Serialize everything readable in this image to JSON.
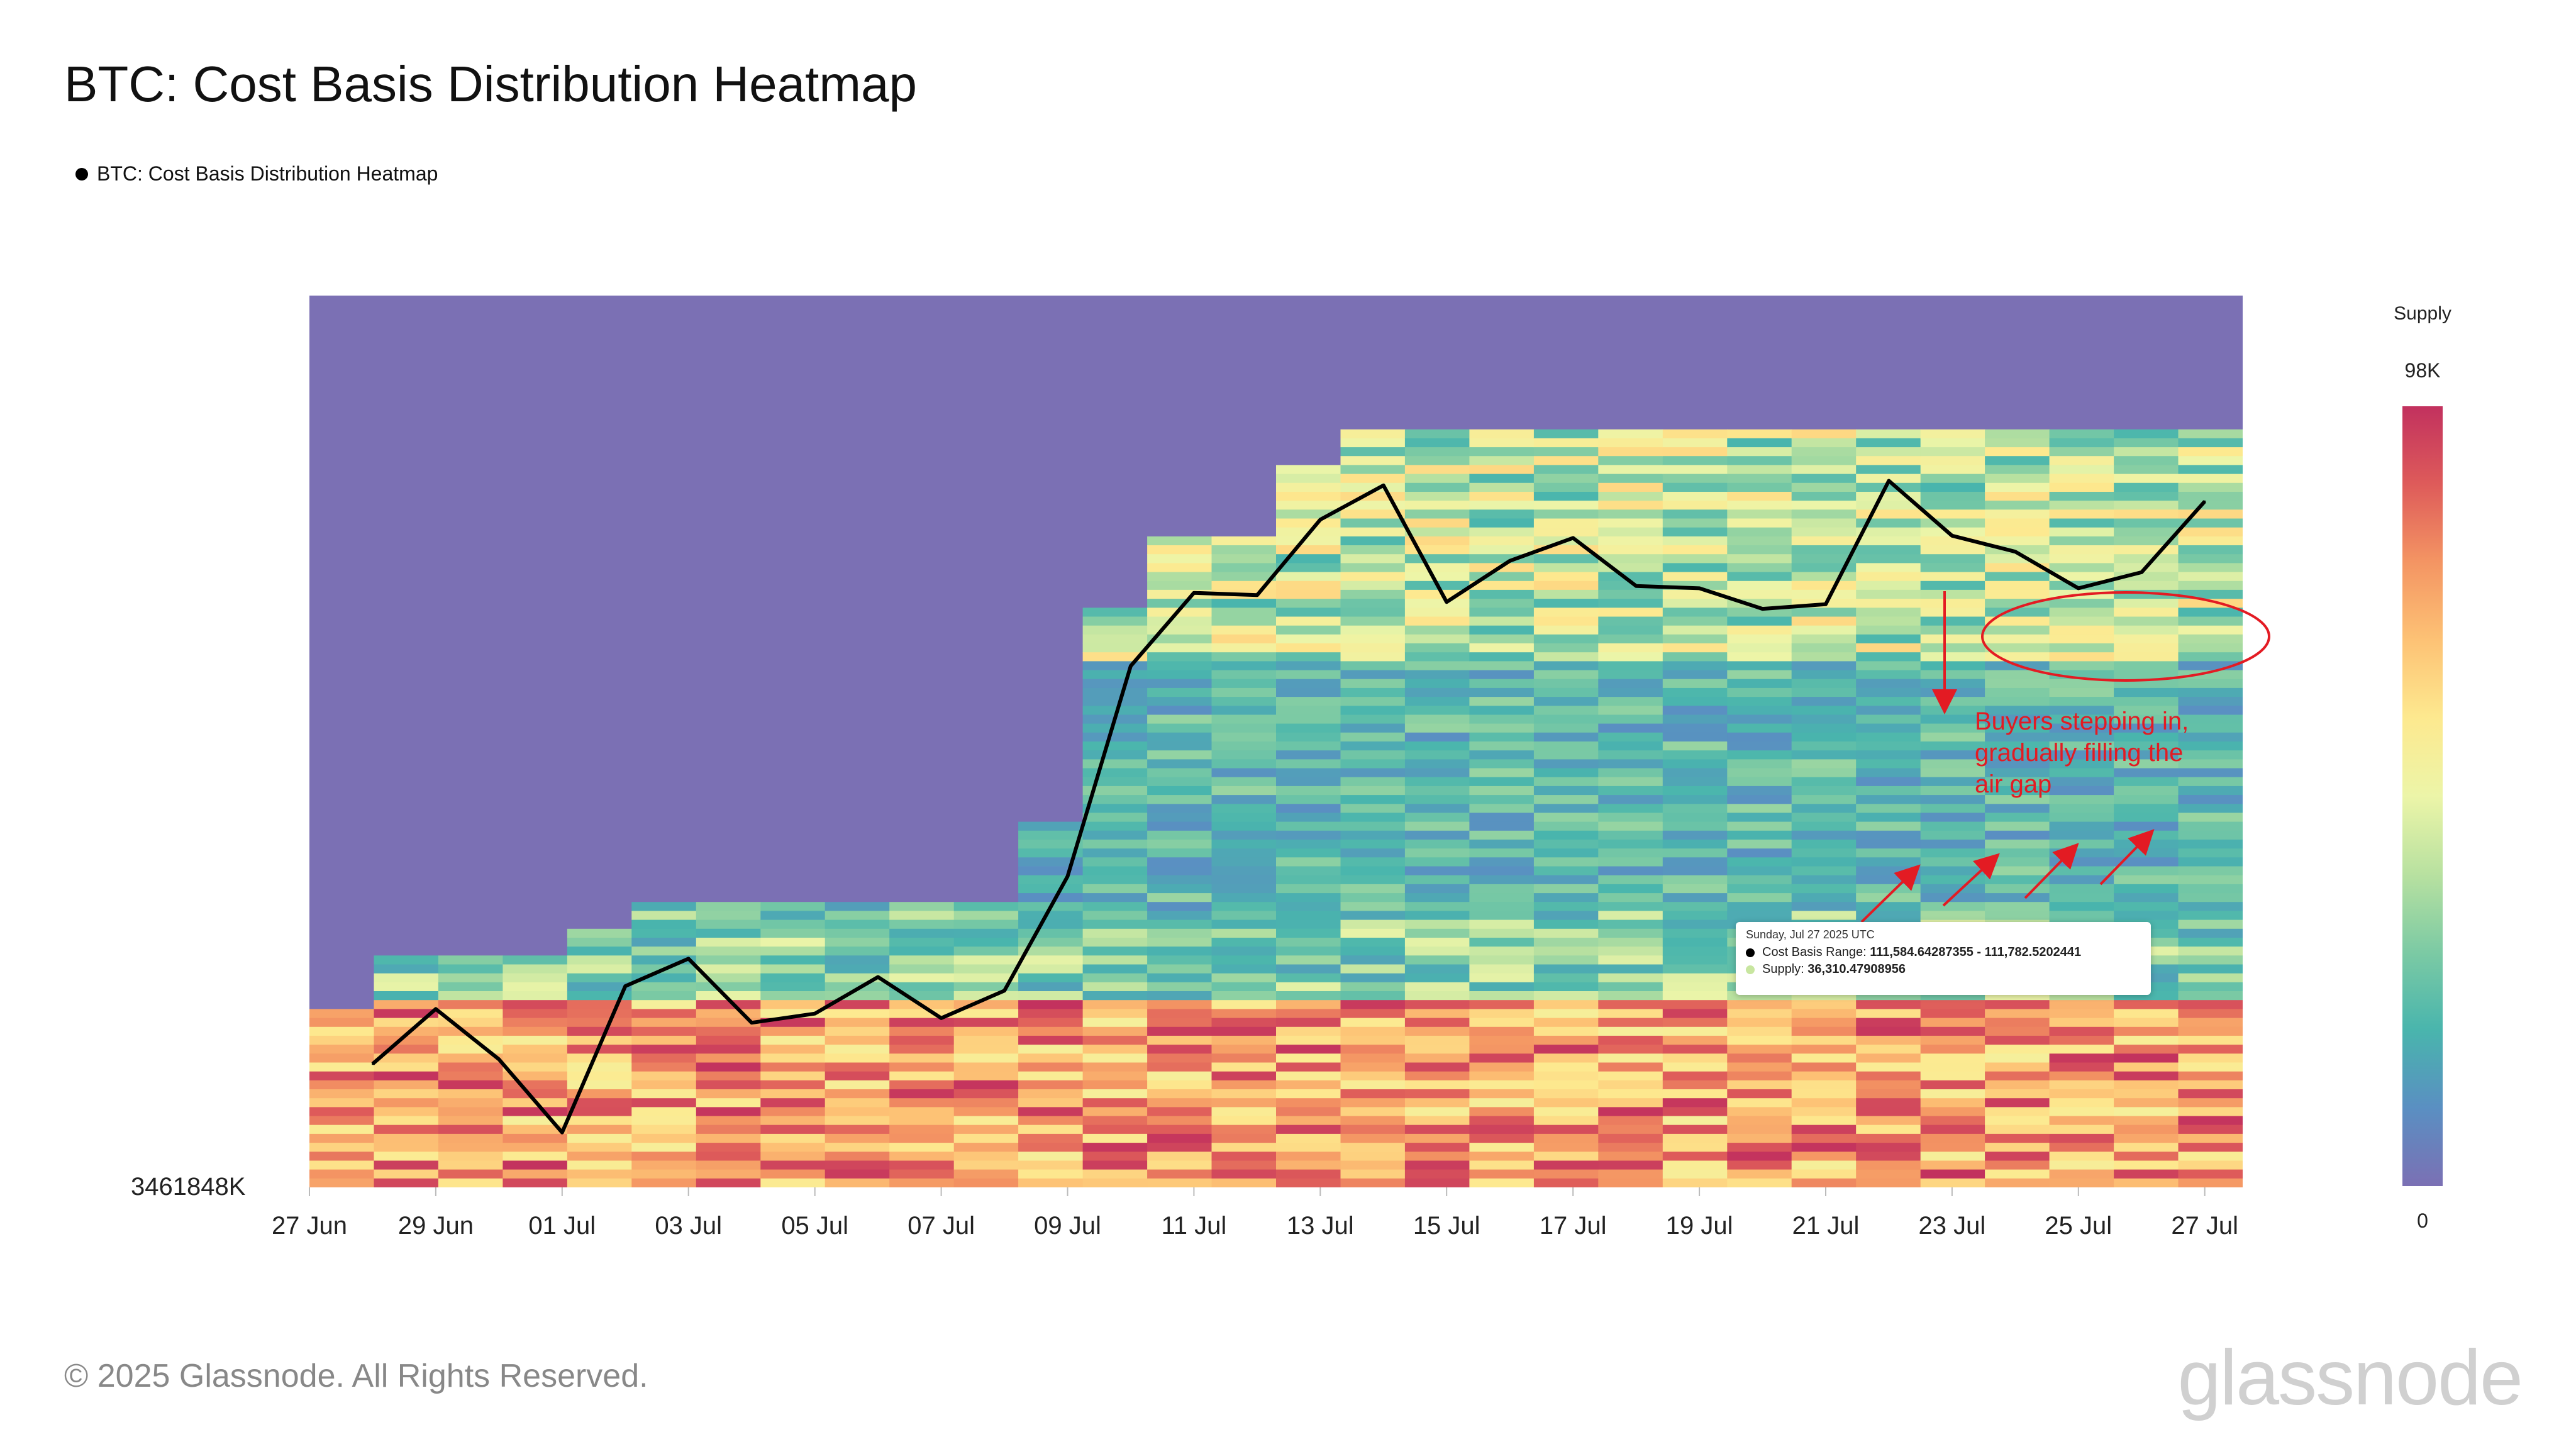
{
  "title": "BTC: Cost Basis Distribution Heatmap",
  "legend_label": "BTC: Cost Basis Distribution Heatmap",
  "footer": "© 2025 Glassnode. All Rights Reserved.",
  "brand": "glassnode",
  "watermark": "glassnode",
  "colorbar": {
    "title": "Supply",
    "max_label": "98K",
    "min_label": "0"
  },
  "y_axis_label": "3461848K",
  "tooltip": {
    "date": "Sunday, Jul 27 2025 UTC",
    "range_label": "Cost Basis Range:",
    "range_value": "111,584.64287355 - 111,782.5202441",
    "supply_label": "Supply:",
    "supply_value": "36,310.47908956"
  },
  "annotation": {
    "lines": [
      "Buyers stepping in,",
      "gradually filling the",
      "air gap"
    ],
    "color": "#e31b23"
  },
  "chart_data": {
    "type": "heatmap",
    "title": "BTC: Cost Basis Distribution Heatmap",
    "x_ticks": [
      "27 Jun",
      "29 Jun",
      "01 Jul",
      "03 Jul",
      "05 Jul",
      "07 Jul",
      "09 Jul",
      "11 Jul",
      "13 Jul",
      "15 Jul",
      "17 Jul",
      "19 Jul",
      "21 Jul",
      "23 Jul",
      "25 Jul",
      "27 Jul"
    ],
    "colorscale": [
      "#7b70b4",
      "#5a8fc2",
      "#49b5ad",
      "#7ccaa4",
      "#b8e1a0",
      "#ecf5a8",
      "#fde98f",
      "#fdc275",
      "#f49563",
      "#de5b5a",
      "#c2315e"
    ],
    "supply_range": [
      0,
      98000
    ],
    "price_series": {
      "name": "BTC: Cost Basis Distribution Heatmap",
      "color": "#000000",
      "dates": [
        "28 Jun",
        "29 Jun",
        "30 Jun",
        "01 Jul",
        "02 Jul",
        "03 Jul",
        "04 Jul",
        "05 Jul",
        "06 Jul",
        "07 Jul",
        "08 Jul",
        "09 Jul",
        "10 Jul",
        "11 Jul",
        "12 Jul",
        "13 Jul",
        "14 Jul",
        "15 Jul",
        "16 Jul",
        "17 Jul",
        "18 Jul",
        "19 Jul",
        "20 Jul",
        "21 Jul",
        "22 Jul",
        "23 Jul",
        "24 Jul",
        "25 Jul",
        "26 Jul",
        "27 Jul"
      ],
      "values": [
        107200,
        108400,
        107300,
        105700,
        108900,
        109500,
        108100,
        108300,
        109100,
        108200,
        108800,
        111300,
        115900,
        117500,
        117450,
        119100,
        119850,
        117300,
        118200,
        118700,
        117650,
        117600,
        117150,
        117250,
        119950,
        118750,
        118400,
        117600,
        117950,
        119500
      ]
    }
  }
}
